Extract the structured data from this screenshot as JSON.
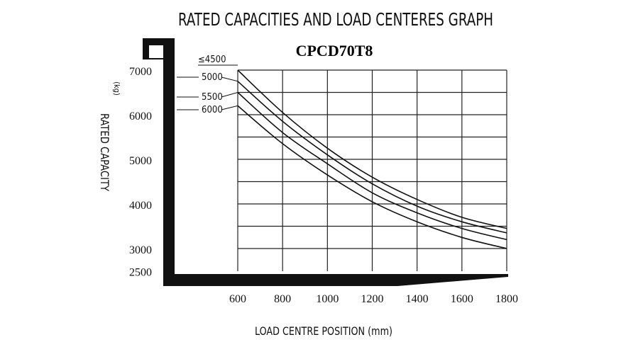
{
  "chart_data": {
    "type": "line",
    "title": "RATED CAPACITIES AND LOAD CENTERES GRAPH",
    "subtitle": "CPCD70T8",
    "xlabel": "LOAD CENTRE POSITION (mm)",
    "ylabel": "RATED CAPACITY",
    "yunit": "(kg)",
    "xlim": [
      600,
      1800
    ],
    "ylim": [
      2500,
      7000
    ],
    "x_ticks": [
      "600",
      "800",
      "1000",
      "1200",
      "1400",
      "1600",
      "1800"
    ],
    "y_ticks": [
      "7000",
      "6000",
      "5000",
      "4000",
      "3000",
      "2500"
    ],
    "grid": true,
    "series": [
      {
        "name": "≤4500",
        "x": [
          600,
          800,
          1000,
          1200,
          1400,
          1600,
          1800
        ],
        "y": [
          7000,
          6050,
          5250,
          4600,
          4100,
          3700,
          3450
        ]
      },
      {
        "name": "5000",
        "x": [
          600,
          800,
          1000,
          1200,
          1400,
          1600,
          1800
        ],
        "y": [
          6750,
          5850,
          5100,
          4450,
          3950,
          3600,
          3350
        ]
      },
      {
        "name": "5500",
        "x": [
          600,
          800,
          1000,
          1200,
          1400,
          1600,
          1800
        ],
        "y": [
          6500,
          5600,
          4900,
          4250,
          3800,
          3450,
          3200
        ]
      },
      {
        "name": "6000",
        "x": [
          600,
          800,
          1000,
          1200,
          1400,
          1600,
          1800
        ],
        "y": [
          6200,
          5350,
          4650,
          4050,
          3600,
          3250,
          3000
        ]
      }
    ]
  }
}
